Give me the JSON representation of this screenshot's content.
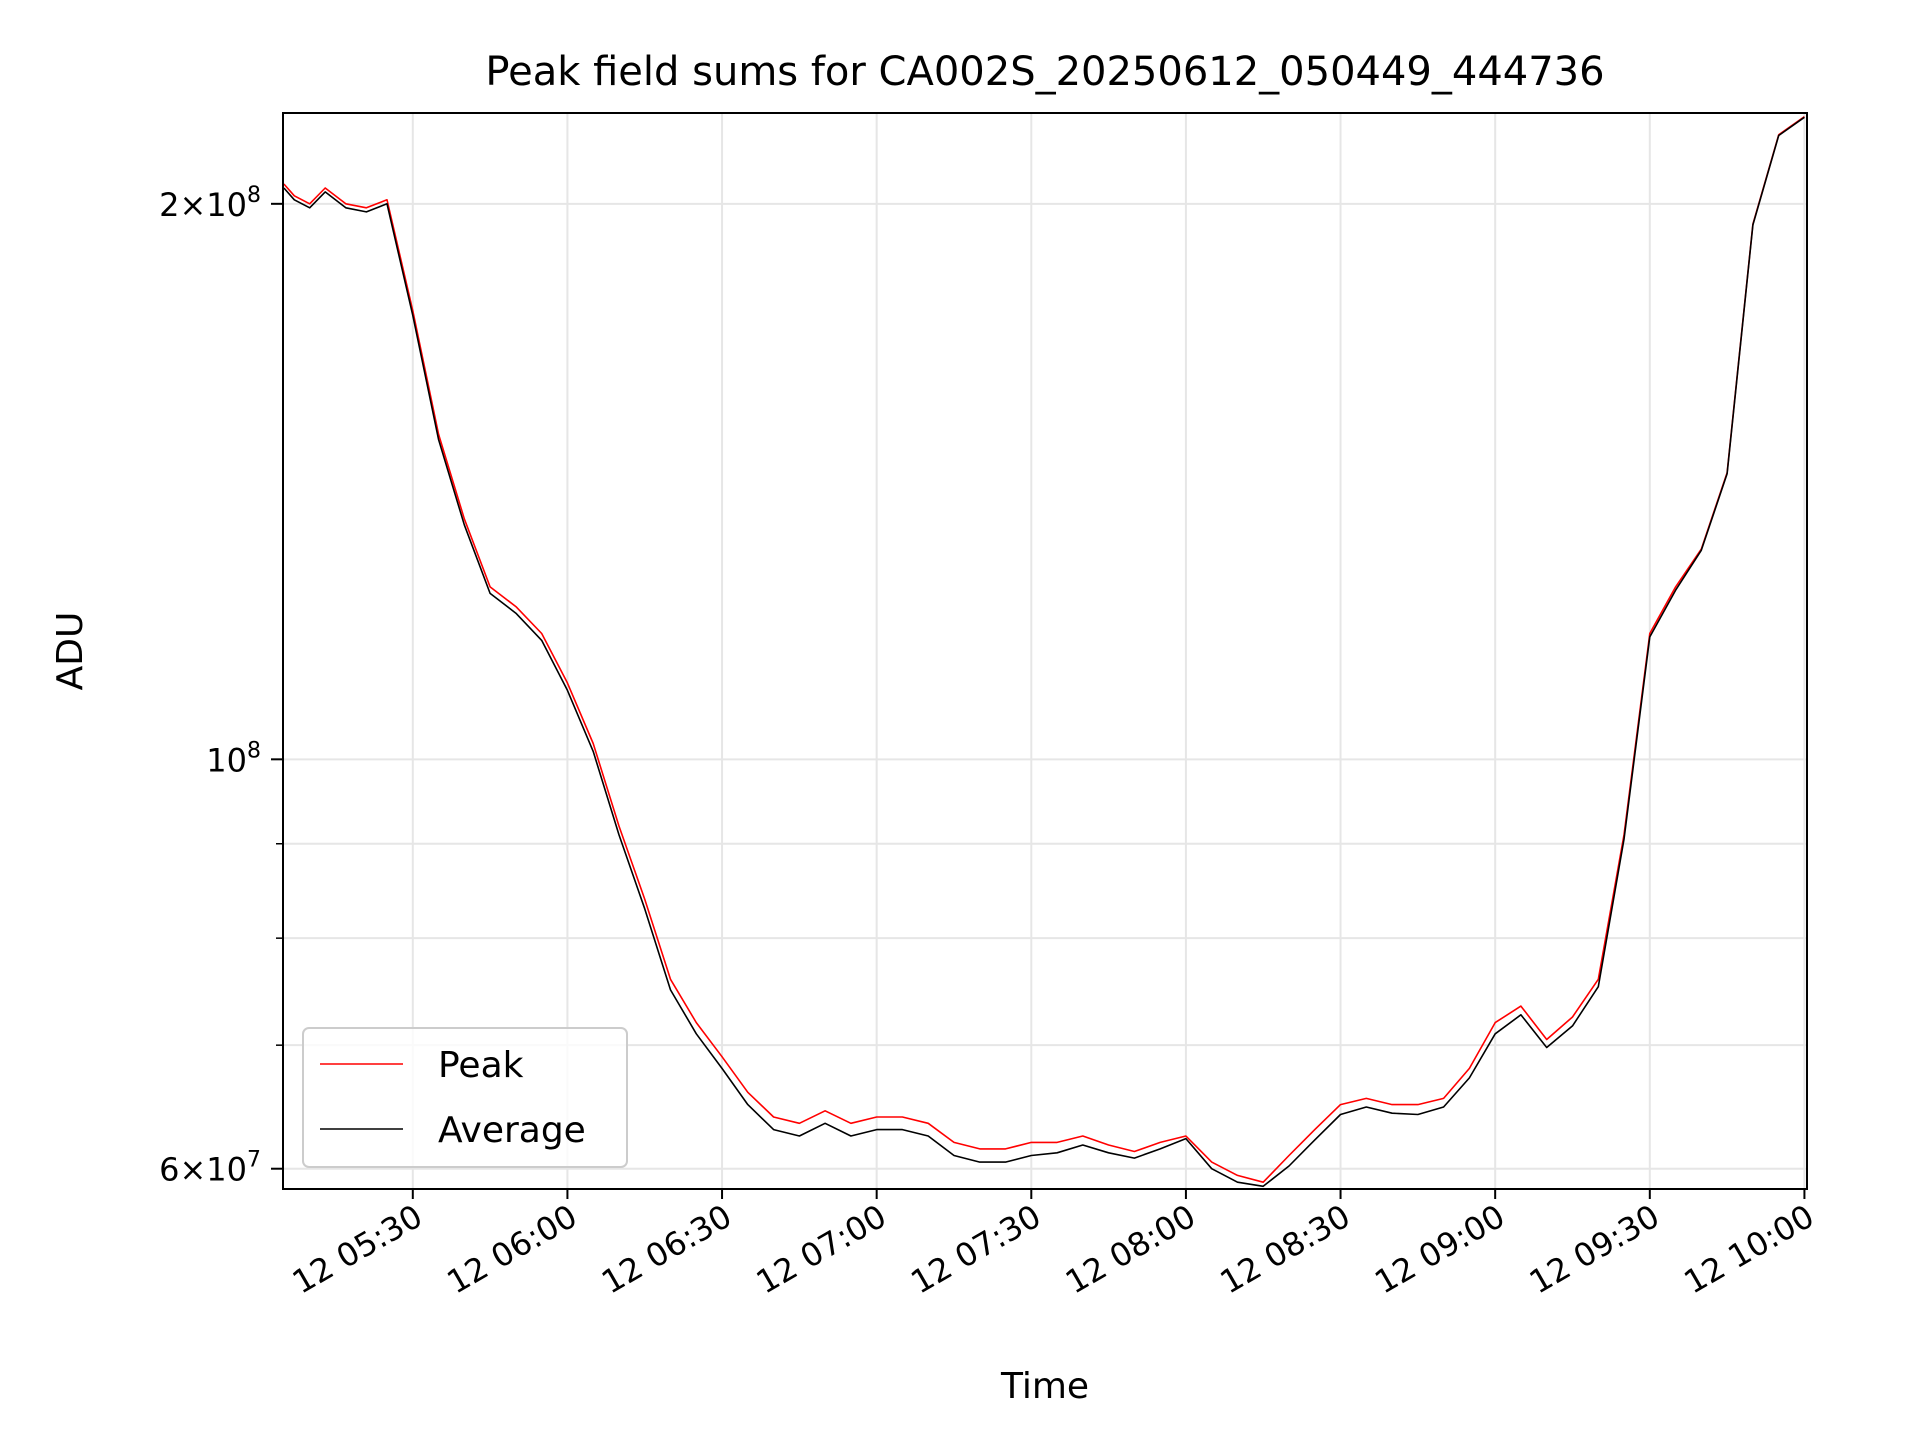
{
  "chart_data": {
    "type": "line",
    "title": "Peak field sums for CA002S_20250612_050449_444736",
    "xlabel": "Time",
    "ylabel": "ADU",
    "yscale": "log",
    "grid": true,
    "legend_position": "lower-left",
    "xlim": [
      "12 05:04:49",
      "12 10:00:30"
    ],
    "ylim": [
      58500000,
      224000000
    ],
    "x_ticks": [
      "12 05:30",
      "12 06:00",
      "12 06:30",
      "12 07:00",
      "12 07:30",
      "12 08:00",
      "12 08:30",
      "12 09:00",
      "12 09:30",
      "12 10:00"
    ],
    "y_ticks": [
      {
        "value": 60000000,
        "base": "6×10",
        "exp": "7"
      },
      {
        "value": 100000000,
        "base": "10",
        "exp": "8"
      },
      {
        "value": 200000000,
        "base": "2×10",
        "exp": "8"
      }
    ],
    "y_minor_ticks": [
      70000000,
      80000000,
      90000000
    ],
    "x": [
      "12 05:05",
      "12 05:07",
      "12 05:10",
      "12 05:13",
      "12 05:17",
      "12 05:21",
      "12 05:25",
      "12 05:30",
      "12 05:35",
      "12 05:40",
      "12 05:45",
      "12 05:50",
      "12 05:55",
      "12 06:00",
      "12 06:05",
      "12 06:10",
      "12 06:15",
      "12 06:20",
      "12 06:25",
      "12 06:30",
      "12 06:35",
      "12 06:40",
      "12 06:45",
      "12 06:50",
      "12 06:55",
      "12 07:00",
      "12 07:05",
      "12 07:10",
      "12 07:15",
      "12 07:20",
      "12 07:25",
      "12 07:30",
      "12 07:35",
      "12 07:40",
      "12 07:45",
      "12 07:50",
      "12 07:55",
      "12 08:00",
      "12 08:05",
      "12 08:10",
      "12 08:15",
      "12 08:20",
      "12 08:25",
      "12 08:30",
      "12 08:35",
      "12 08:40",
      "12 08:45",
      "12 08:50",
      "12 08:55",
      "12 09:00",
      "12 09:05",
      "12 09:10",
      "12 09:15",
      "12 09:20",
      "12 09:25",
      "12 09:30",
      "12 09:35",
      "12 09:40",
      "12 09:45",
      "12 09:50",
      "12 09:55",
      "12 10:00"
    ],
    "series": [
      {
        "name": "Peak",
        "color": "#ff0000",
        "values": [
          205000000,
          202000000,
          200000000,
          204000000,
          200000000,
          199000000,
          201000000,
          175000000,
          150000000,
          135000000,
          124000000,
          121000000,
          117000000,
          110000000,
          102000000,
          92000000,
          84000000,
          76000000,
          72000000,
          69000000,
          66000000,
          64000000,
          63500000,
          64500000,
          63500000,
          64000000,
          64000000,
          63500000,
          62000000,
          61500000,
          61500000,
          62000000,
          62000000,
          62500000,
          61800000,
          61300000,
          62000000,
          62500000,
          60500000,
          59500000,
          59000000,
          61000000,
          63000000,
          65000000,
          65500000,
          65000000,
          65000000,
          65500000,
          68000000,
          72000000,
          73500000,
          70500000,
          72500000,
          76000000,
          91000000,
          117000000,
          124000000,
          130000000,
          143000000,
          195000000,
          218000000,
          223000000
        ]
      },
      {
        "name": "Average",
        "color": "#000000",
        "values": [
          204000000,
          201000000,
          199000000,
          203000000,
          199000000,
          198000000,
          200000000,
          174000000,
          149000000,
          134000000,
          123000000,
          120000000,
          116000000,
          109000000,
          101000000,
          91000000,
          83000000,
          75000000,
          71000000,
          68000000,
          65000000,
          63000000,
          62500000,
          63500000,
          62500000,
          63000000,
          63000000,
          62500000,
          61000000,
          60500000,
          60500000,
          61000000,
          61200000,
          61800000,
          61200000,
          60800000,
          61500000,
          62300000,
          60000000,
          59000000,
          58700000,
          60200000,
          62200000,
          64200000,
          64800000,
          64300000,
          64200000,
          64800000,
          67200000,
          71000000,
          72700000,
          69800000,
          71700000,
          75300000,
          90500000,
          116500000,
          123500000,
          129800000,
          142800000,
          194800000,
          217800000,
          222800000
        ]
      }
    ]
  }
}
